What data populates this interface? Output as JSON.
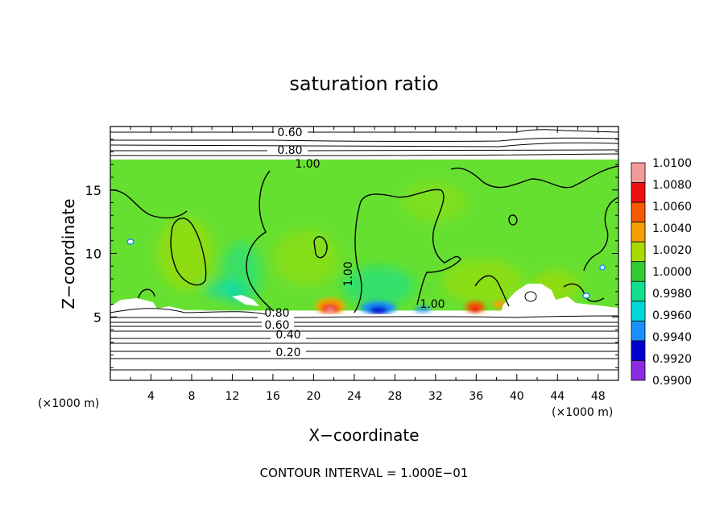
{
  "chart_data": {
    "type": "heatmap",
    "title": "saturation ratio",
    "xlabel": "X−coordinate",
    "ylabel": "Z−coordinate",
    "x_unit": "(×1000 m)",
    "xlim": [
      0,
      50
    ],
    "ylim": [
      0,
      20
    ],
    "x_ticks": [
      "4",
      "8",
      "12",
      "16",
      "20",
      "24",
      "28",
      "32",
      "36",
      "40",
      "44",
      "48"
    ],
    "y_ticks": [
      "5",
      "10",
      "15"
    ],
    "contour_interval_label": "CONTOUR INTERVAL = 1.000E−01",
    "contour_labels": [
      "0.60",
      "0.80",
      "1.00",
      "1.00",
      "1.00",
      "0.40",
      "0.20",
      "0.80",
      "0.60"
    ],
    "colorbar": {
      "labels": [
        "1.0100",
        "1.0080",
        "1.0060",
        "1.0040",
        "1.0020",
        "1.0000",
        "0.9980",
        "0.9960",
        "0.9940",
        "0.9920",
        "0.9900"
      ],
      "colors": [
        "#f59a9a",
        "#ee1010",
        "#f55a00",
        "#f5a000",
        "#a8dc00",
        "#32cd32",
        "#10e090",
        "#00d8d8",
        "#1890ff",
        "#0000d0",
        "#8a2be2"
      ]
    },
    "background_color": "#66e030",
    "cloud_top": 17.4,
    "cloud_base": 5.5
  }
}
